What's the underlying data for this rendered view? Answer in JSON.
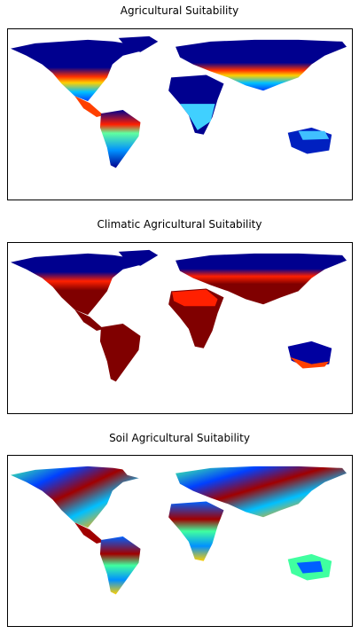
{
  "panels": [
    {
      "title": "Agricultural Suitability"
    },
    {
      "title": "Climatic Agricultural Suitability"
    },
    {
      "title": "Soil Agricultural Suitability"
    }
  ],
  "colormap": {
    "name": "jet",
    "low": "#00008f",
    "blue": "#0000ff",
    "cyan": "#00ffff",
    "yellow": "#ffff00",
    "red": "#ff0000",
    "high": "#800000"
  }
}
